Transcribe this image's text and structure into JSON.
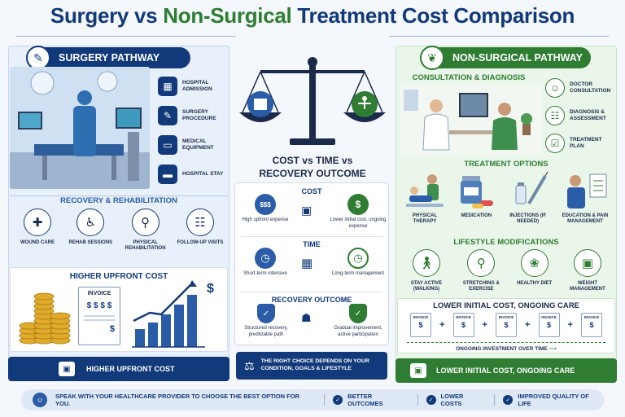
{
  "title": {
    "part1": "Surgery vs ",
    "part2": "Non-Surgical",
    "part3": " Treatment Cost Comparison"
  },
  "surgery": {
    "header": "SURGERY PATHWAY",
    "items": [
      "HOSPITAL ADMISSION",
      "SURGERY PROCEDURE",
      "MEDICAL EQUIPMENT",
      "HOSPITAL STAY"
    ],
    "recovery_header": "RECOVERY & REHABILITATION",
    "recovery_items": [
      "WOUND CARE",
      "REHAB SESSIONS",
      "PHYSICAL REHABILITATION",
      "FOLLOW-UP VISITS"
    ],
    "cost_header": "HIGHER UPFRONT COST",
    "invoice_label": "INVOICE",
    "invoice_symbols": "$ $ $ $",
    "invoice_dollar": "$",
    "chart_dollar": "$",
    "bottom": "HIGHER UPFRONT COST"
  },
  "middle": {
    "heading": "COST vs TIME vs RECOVERY OUTCOME",
    "cost_h": "COST",
    "cost_left_icon": "$$$",
    "cost_left": "High upfront expense",
    "cost_right_icon": "$",
    "cost_right": "Lower initial cost, ongoing expense",
    "time_h": "TIME",
    "time_left": "Short-term intensive",
    "time_right": "Long-term management",
    "outcome_h": "RECOVERY OUTCOME",
    "outcome_left": "Structured recovery, predictable path",
    "outcome_right": "Gradual improvement, active participation",
    "banner": "THE RIGHT CHOICE DEPENDS ON YOUR CONDITION, GOALS & LIFESTYLE"
  },
  "nonsurgical": {
    "header": "NON-SURGICAL PATHWAY",
    "consult_h": "CONSULTATION & DIAGNOSIS",
    "consult_items": [
      "DOCTOR CONSULTATION",
      "DIAGNOSIS & ASSESSMENT",
      "TREATMENT PLAN"
    ],
    "treat_h": "TREATMENT OPTIONS",
    "treat_items": [
      "PHYSICAL THERAPY",
      "MEDICATION",
      "INJECTIONS (IF NEEDED)",
      "EDUCATION & PAIN MANAGEMENT"
    ],
    "life_h": "LIFESTYLE MODIFICATIONS",
    "life_items": [
      "STAY ACTIVE (WALKING)",
      "STRETCHING & EXERCISE",
      "HEALTHY DIET",
      "WEIGHT MANAGEMENT"
    ],
    "ongoing_h": "LOWER INITIAL COST, ONGOING CARE",
    "invoice_label": "INVOICE",
    "invoice_dollar": "$",
    "plus": "+",
    "ongoing_sub": "ONGOING INVESTMENT OVER TIME",
    "bottom": "LOWER INITIAL COST, ONGOING CARE"
  },
  "footer": {
    "main": "SPEAK WITH YOUR HEALTHCARE PROVIDER TO CHOOSE THE BEST OPTION FOR YOU.",
    "b1": "BETTER OUTCOMES",
    "b2": "LOWER COSTS",
    "b3": "IMPROVED QUALITY OF LIFE"
  },
  "colors": {
    "navy": "#123a7a",
    "green": "#2e7d32",
    "gold": "#d9a21b"
  },
  "icons": [
    "scalpel-icon",
    "leaf-icon",
    "scale-icon",
    "hospital-icon",
    "person-icon",
    "invoice-icon",
    "bar-chart-icon",
    "clock-icon",
    "calendar-icon",
    "shield-icon",
    "wallet-icon",
    "check-icon",
    "user-icon"
  ]
}
